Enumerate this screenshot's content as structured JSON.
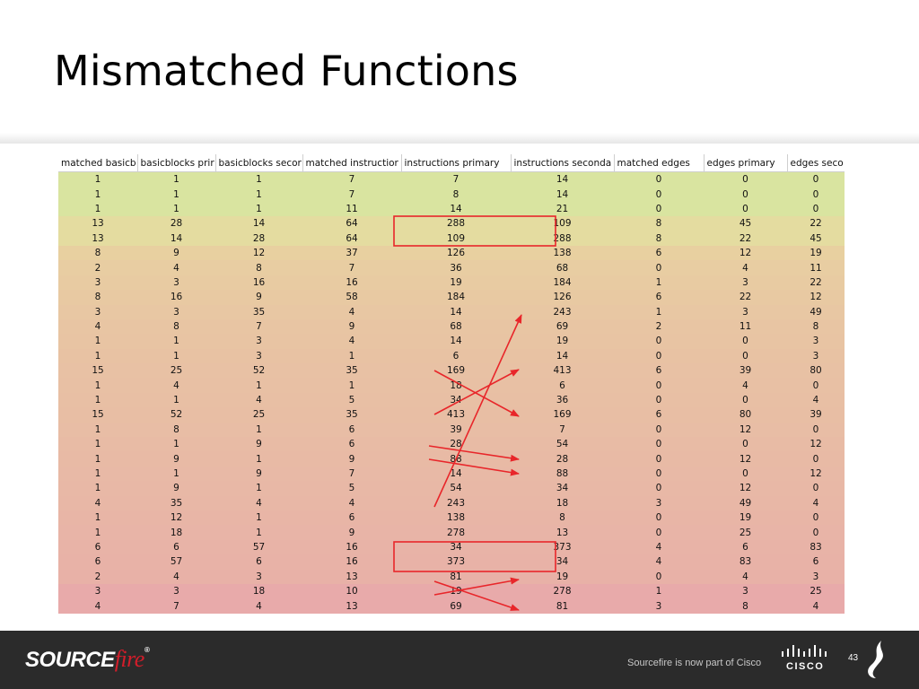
{
  "slide": {
    "title": "Mismatched Functions",
    "page_number": "43"
  },
  "table": {
    "columns": [
      "matched basicb",
      "basicblocks prir",
      "basicblocks secor",
      "matched instructior",
      "instructions primary",
      "instructions seconda",
      "matched edges",
      "edges primary",
      "edges seco"
    ],
    "rows": [
      [
        "1",
        "1",
        "1",
        "7",
        "7",
        "14",
        "0",
        "0",
        "0"
      ],
      [
        "1",
        "1",
        "1",
        "7",
        "8",
        "14",
        "0",
        "0",
        "0"
      ],
      [
        "1",
        "1",
        "1",
        "11",
        "14",
        "21",
        "0",
        "0",
        "0"
      ],
      [
        "13",
        "28",
        "14",
        "64",
        "288",
        "109",
        "8",
        "45",
        "22"
      ],
      [
        "13",
        "14",
        "28",
        "64",
        "109",
        "288",
        "8",
        "22",
        "45"
      ],
      [
        "8",
        "9",
        "12",
        "37",
        "126",
        "138",
        "6",
        "12",
        "19"
      ],
      [
        "2",
        "4",
        "8",
        "7",
        "36",
        "68",
        "0",
        "4",
        "11"
      ],
      [
        "3",
        "3",
        "16",
        "16",
        "19",
        "184",
        "1",
        "3",
        "22"
      ],
      [
        "8",
        "16",
        "9",
        "58",
        "184",
        "126",
        "6",
        "22",
        "12"
      ],
      [
        "3",
        "3",
        "35",
        "4",
        "14",
        "243",
        "1",
        "3",
        "49"
      ],
      [
        "4",
        "8",
        "7",
        "9",
        "68",
        "69",
        "2",
        "11",
        "8"
      ],
      [
        "1",
        "1",
        "3",
        "4",
        "14",
        "19",
        "0",
        "0",
        "3"
      ],
      [
        "1",
        "1",
        "3",
        "1",
        "6",
        "14",
        "0",
        "0",
        "3"
      ],
      [
        "15",
        "25",
        "52",
        "35",
        "169",
        "413",
        "6",
        "39",
        "80"
      ],
      [
        "1",
        "4",
        "1",
        "1",
        "18",
        "6",
        "0",
        "4",
        "0"
      ],
      [
        "1",
        "1",
        "4",
        "5",
        "34",
        "36",
        "0",
        "0",
        "4"
      ],
      [
        "15",
        "52",
        "25",
        "35",
        "413",
        "169",
        "6",
        "80",
        "39"
      ],
      [
        "1",
        "8",
        "1",
        "6",
        "39",
        "7",
        "0",
        "12",
        "0"
      ],
      [
        "1",
        "1",
        "9",
        "6",
        "28",
        "54",
        "0",
        "0",
        "12"
      ],
      [
        "1",
        "9",
        "1",
        "9",
        "88",
        "28",
        "0",
        "12",
        "0"
      ],
      [
        "1",
        "1",
        "9",
        "7",
        "14",
        "88",
        "0",
        "0",
        "12"
      ],
      [
        "1",
        "9",
        "1",
        "5",
        "54",
        "34",
        "0",
        "12",
        "0"
      ],
      [
        "4",
        "35",
        "4",
        "4",
        "243",
        "18",
        "3",
        "49",
        "4"
      ],
      [
        "1",
        "12",
        "1",
        "6",
        "138",
        "8",
        "0",
        "19",
        "0"
      ],
      [
        "1",
        "18",
        "1",
        "9",
        "278",
        "13",
        "0",
        "25",
        "0"
      ],
      [
        "6",
        "6",
        "57",
        "16",
        "34",
        "373",
        "4",
        "6",
        "83"
      ],
      [
        "6",
        "57",
        "6",
        "16",
        "373",
        "34",
        "4",
        "83",
        "6"
      ],
      [
        "2",
        "4",
        "3",
        "13",
        "81",
        "19",
        "0",
        "4",
        "3"
      ],
      [
        "3",
        "3",
        "18",
        "10",
        "19",
        "278",
        "1",
        "3",
        "25"
      ],
      [
        "4",
        "7",
        "4",
        "13",
        "69",
        "81",
        "3",
        "8",
        "4"
      ]
    ],
    "row_colors": [
      "#d9e4a0",
      "#d9e4a0",
      "#d9e4a0",
      "#e4dca0",
      "#e4dca0",
      "#e8d0a0",
      "#e8cda2",
      "#e8cba2",
      "#e8c9a2",
      "#e8c7a3",
      "#e8c5a3",
      "#e8c4a3",
      "#e8c2a3",
      "#e8c1a4",
      "#e8c0a4",
      "#e8bfa4",
      "#e8bea4",
      "#e8bda5",
      "#e8bba5",
      "#e8baa5",
      "#e8b9a6",
      "#e8b8a6",
      "#e8b7a6",
      "#e8b5a6",
      "#e8b4a7",
      "#e8b3a7",
      "#e8b2a7",
      "#e8b1a7",
      "#e8aaaa",
      "#e8aaaa"
    ],
    "highlight_color": "#e8262a"
  },
  "footer": {
    "brand_main": "SOURCE",
    "brand_accent": "fire",
    "brand_mark": "®",
    "tagline": "Sourcefire is now part of Cisco",
    "cisco_word": "CISCO",
    "icons": [
      "cisco-bridge-logo-icon",
      "sourcefire-flame-icon"
    ]
  }
}
